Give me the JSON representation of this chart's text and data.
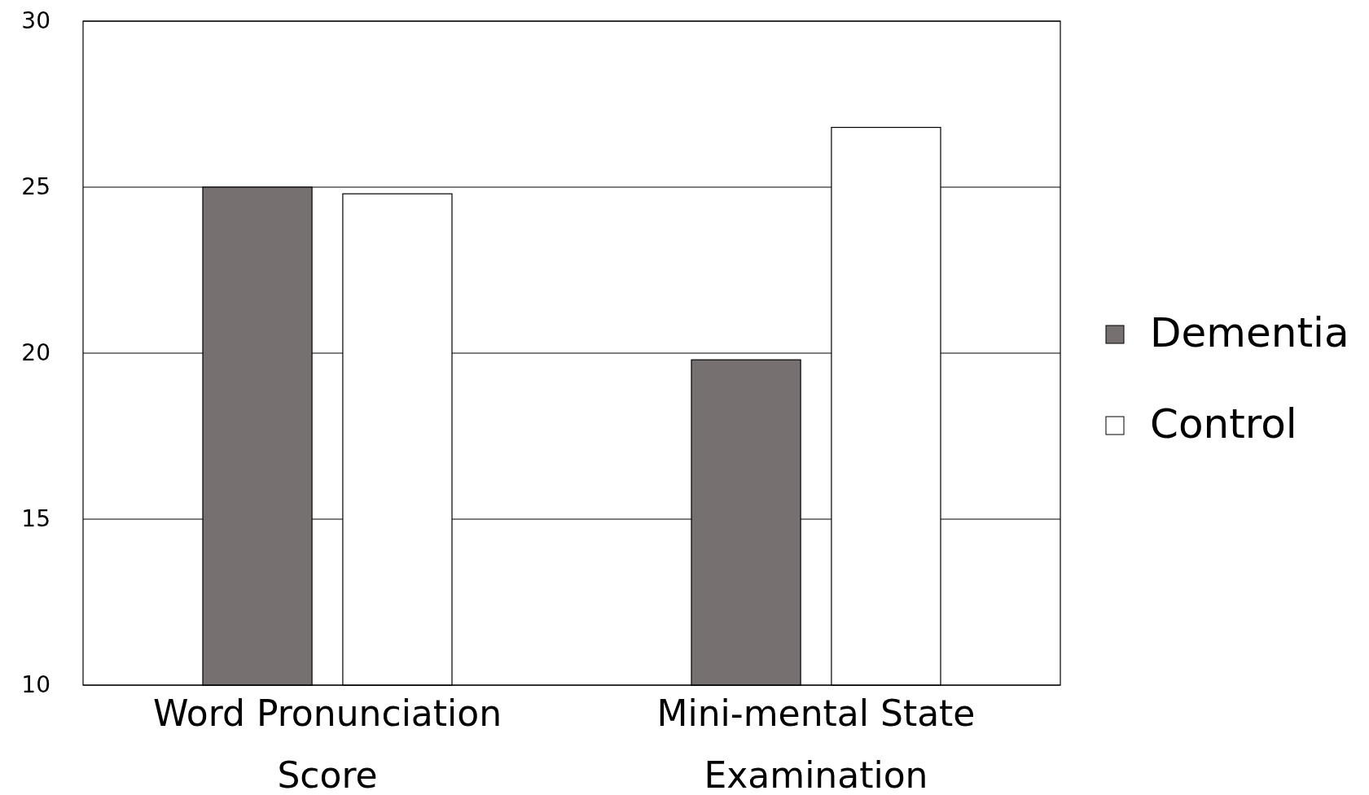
{
  "chart_data": {
    "type": "bar",
    "categories": [
      "Word Pronunciation Score",
      "Mini-mental State Examination"
    ],
    "series": [
      {
        "name": "Dementia",
        "color": "#767070",
        "values": [
          25,
          19.8
        ]
      },
      {
        "name": "Control",
        "color": "#ffffff",
        "values": [
          24.8,
          26.8
        ]
      }
    ],
    "ylim": [
      10,
      30
    ],
    "yticks": [
      10,
      15,
      20,
      25,
      30
    ],
    "grid": "y",
    "legend": "right"
  }
}
